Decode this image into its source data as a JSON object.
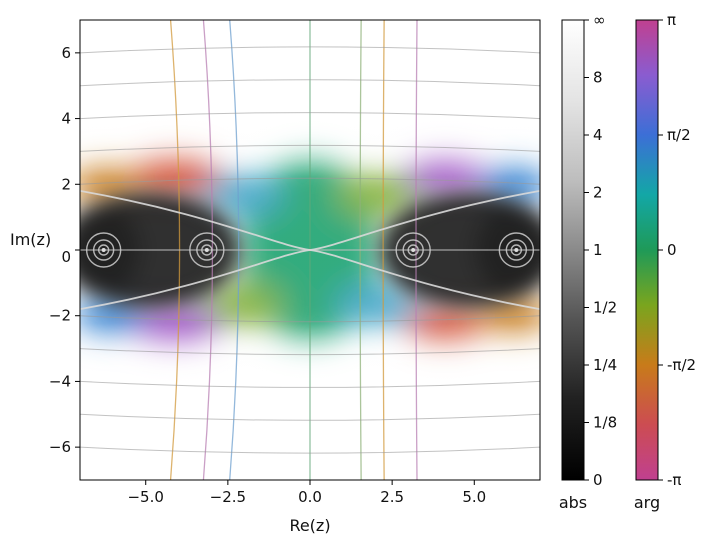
{
  "chart_data": {
    "type": "heatmap",
    "title": "",
    "xlabel": "Re(z)",
    "ylabel": "Im(z)",
    "xlim": [
      -7,
      7
    ],
    "ylim": [
      -7,
      7
    ],
    "x_ticks": [
      -5.0,
      -2.5,
      0.0,
      2.5,
      5.0
    ],
    "x_tick_labels": [
      "−5.0",
      "−2.5",
      "0.0",
      "2.5",
      "5.0"
    ],
    "y_ticks": [
      6,
      4,
      2,
      0,
      -2,
      -4,
      -6
    ],
    "y_tick_labels": [
      "6",
      "4",
      "2",
      "0",
      "−2",
      "−4",
      "−6"
    ],
    "colorbars": [
      {
        "label": "abs",
        "ticks": [
          "∞",
          "8",
          "4",
          "2",
          "1",
          "1/2",
          "1/4",
          "1/8",
          "0"
        ],
        "colors": [
          "#ffffff",
          "#000000"
        ]
      },
      {
        "label": "arg",
        "ticks": [
          "π",
          "π/2",
          "0",
          "-π/2",
          "-π"
        ],
        "colors": [
          "#c04090",
          "#8a5cd0",
          "#3c6fd6",
          "#13a7a6",
          "#1f9a58",
          "#7aa51e",
          "#c87b1a",
          "#cc4c52",
          "#c04090"
        ]
      }
    ],
    "marked_points": [
      {
        "x": -6.28,
        "y": 0
      },
      {
        "x": -3.14,
        "y": 0
      },
      {
        "x": 3.14,
        "y": 0
      },
      {
        "x": 6.28,
        "y": 0
      }
    ],
    "grid": true
  }
}
